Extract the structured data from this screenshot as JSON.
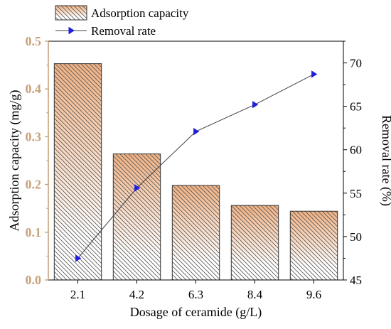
{
  "chart_data": {
    "type": "bar",
    "categories": [
      "2.1",
      "4.2",
      "6.3",
      "8.4",
      "9.6"
    ],
    "series": [
      {
        "name": "Adsorption capacity",
        "kind": "bar",
        "axis": "left",
        "values": [
          0.453,
          0.264,
          0.198,
          0.156,
          0.144
        ]
      },
      {
        "name": "Removal rate",
        "kind": "line",
        "axis": "right",
        "values": [
          47.5,
          55.6,
          62.1,
          65.2,
          68.7
        ]
      }
    ],
    "xlabel": "Dosage of ceramide (g/L)",
    "ylabel": "Adsorption capacity (mg/g)",
    "y2label": "Removal rate (%)",
    "ylim": [
      0,
      0.5
    ],
    "y2lim": [
      45,
      72.5
    ],
    "yticks": [
      "0.0",
      "0.1",
      "0.2",
      "0.3",
      "0.4",
      "0.5"
    ],
    "y2ticks": [
      "45",
      "50",
      "55",
      "60",
      "65",
      "70"
    ],
    "legend": "top-left",
    "grid": false,
    "colors": {
      "bar_top": "#f0b183",
      "bar_bottom": "#ffffff",
      "hatch": "#555555",
      "left_axis": "#c8a27a",
      "line": "#404040",
      "marker": "#1f1fe0"
    }
  }
}
